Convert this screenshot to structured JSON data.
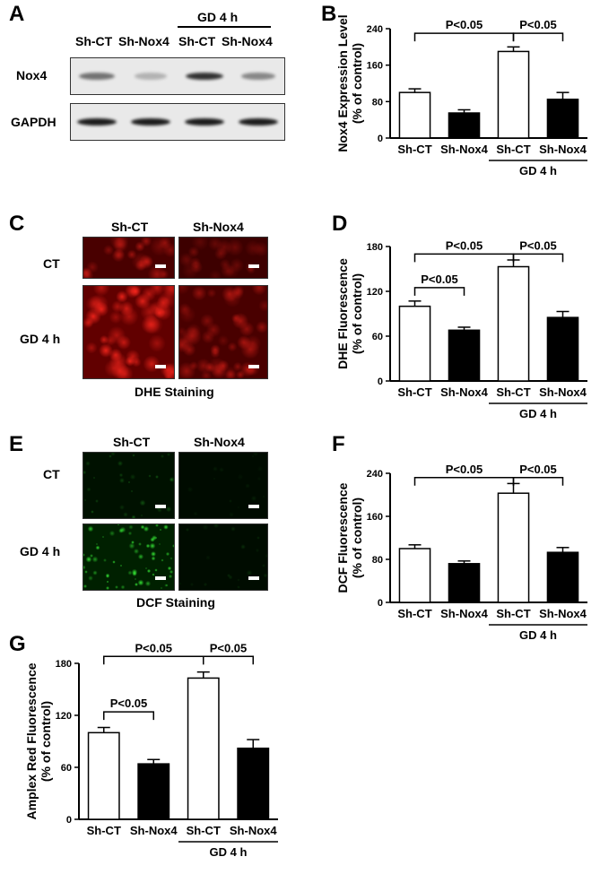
{
  "panels": [
    "A",
    "B",
    "C",
    "D",
    "E",
    "F",
    "G"
  ],
  "blot": {
    "col_labels": [
      "Sh-CT",
      "Sh-Nox4",
      "Sh-CT",
      "Sh-Nox4"
    ],
    "group_label": "GD 4 h",
    "row_labels": [
      "Nox4",
      "GAPDH"
    ],
    "nox4_intensity": [
      0.55,
      0.25,
      0.85,
      0.45
    ],
    "gapdh_intensity": [
      0.95,
      0.95,
      0.95,
      0.95
    ]
  },
  "dhe_images": {
    "col_labels": [
      "Sh-CT",
      "Sh-Nox4"
    ],
    "row_labels": [
      "CT",
      "GD 4 h"
    ],
    "caption": "DHE Staining",
    "tint": "#ff2010",
    "brightness": [
      [
        0.55,
        0.35
      ],
      [
        0.95,
        0.55
      ]
    ]
  },
  "dcf_images": {
    "col_labels": [
      "Sh-CT",
      "Sh-Nox4"
    ],
    "row_labels": [
      "CT",
      "GD 4 h"
    ],
    "caption": "DCF Staining",
    "tint": "#30e030",
    "brightness": [
      [
        0.35,
        0.1
      ],
      [
        0.95,
        0.15
      ]
    ]
  },
  "chart_data": [
    {
      "panel": "B",
      "type": "bar",
      "categories": [
        "Sh-CT",
        "Sh-Nox4",
        "Sh-CT",
        "Sh-Nox4"
      ],
      "values": [
        100,
        55,
        190,
        85
      ],
      "errors": [
        8,
        7,
        10,
        15
      ],
      "fill": [
        "#ffffff",
        "#000000",
        "#ffffff",
        "#000000"
      ],
      "ylabel": "Nox4 Expression Level\n(% of control)",
      "ylim": [
        0,
        240
      ],
      "yticks": [
        "0",
        "80",
        "160",
        "240"
      ],
      "group_label": "GD 4 h",
      "annotations": [
        {
          "text": "P<0.05",
          "from": 0,
          "to": 2,
          "y": 230
        },
        {
          "text": "P<0.05",
          "from": 2,
          "to": 3,
          "y": 230
        }
      ]
    },
    {
      "panel": "D",
      "type": "bar",
      "categories": [
        "Sh-CT",
        "Sh-Nox4",
        "Sh-CT",
        "Sh-Nox4"
      ],
      "values": [
        100,
        68,
        153,
        85
      ],
      "errors": [
        7,
        4,
        9,
        8
      ],
      "fill": [
        "#ffffff",
        "#000000",
        "#ffffff",
        "#000000"
      ],
      "ylabel": "DHE Fluorescence\n(% of control)",
      "ylim": [
        0,
        180
      ],
      "yticks": [
        "0",
        "60",
        "120",
        "180"
      ],
      "group_label": "GD 4 h",
      "annotations": [
        {
          "text": "P<0.05",
          "from": 0,
          "to": 2,
          "y": 170
        },
        {
          "text": "P<0.05",
          "from": 2,
          "to": 3,
          "y": 170
        },
        {
          "text": "P<0.05",
          "from": 0,
          "to": 1,
          "y": 125
        }
      ]
    },
    {
      "panel": "F",
      "type": "bar",
      "categories": [
        "Sh-CT",
        "Sh-Nox4",
        "Sh-CT",
        "Sh-Nox4"
      ],
      "values": [
        100,
        72,
        203,
        93
      ],
      "errors": [
        7,
        5,
        18,
        9
      ],
      "fill": [
        "#ffffff",
        "#000000",
        "#ffffff",
        "#000000"
      ],
      "ylabel": "DCF Fluorescence\n(% of control)",
      "ylim": [
        0,
        240
      ],
      "yticks": [
        "0",
        "80",
        "160",
        "240"
      ],
      "group_label": "GD 4 h",
      "annotations": [
        {
          "text": "P<0.05",
          "from": 0,
          "to": 2,
          "y": 232
        },
        {
          "text": "P<0.05",
          "from": 2,
          "to": 3,
          "y": 232
        }
      ]
    },
    {
      "panel": "G",
      "type": "bar",
      "categories": [
        "Sh-CT",
        "Sh-Nox4",
        "Sh-CT",
        "Sh-Nox4"
      ],
      "values": [
        100,
        64,
        163,
        82
      ],
      "errors": [
        6,
        5,
        7,
        10
      ],
      "fill": [
        "#ffffff",
        "#000000",
        "#ffffff",
        "#000000"
      ],
      "ylabel": "Amplex Red  Fluorescence\n(% of control)",
      "ylim": [
        0,
        180
      ],
      "yticks": [
        "0",
        "60",
        "120",
        "180"
      ],
      "group_label": "GD 4 h",
      "annotations": [
        {
          "text": "P<0.05",
          "from": 0,
          "to": 2,
          "y": 188
        },
        {
          "text": "P<0.05",
          "from": 2,
          "to": 3,
          "y": 188
        },
        {
          "text": "P<0.05",
          "from": 0,
          "to": 1,
          "y": 124
        }
      ]
    }
  ]
}
